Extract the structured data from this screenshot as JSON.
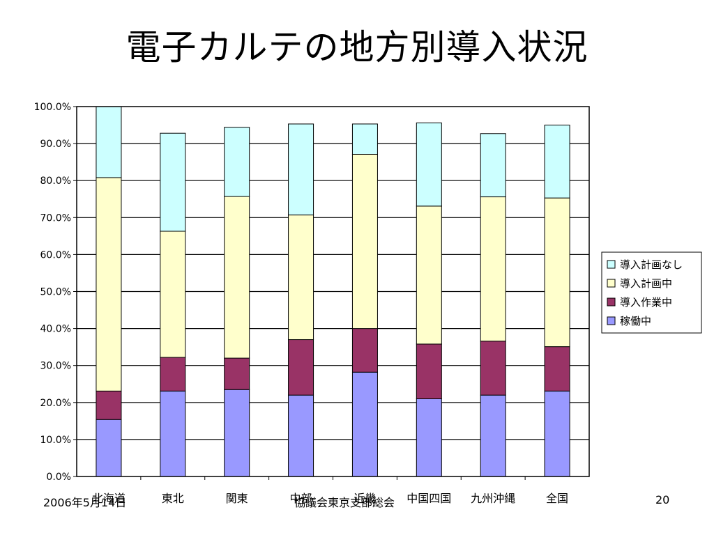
{
  "slide": {
    "title": "電子カルテの地方別導入状況",
    "footer_date": "2006年5月14日",
    "footer_org": "協議会東京支部総会",
    "page_number": "20"
  },
  "chart_data": {
    "type": "bar",
    "stacked": true,
    "title": "",
    "xlabel": "",
    "ylabel": "",
    "ylim": [
      0,
      100
    ],
    "y_tick_labels": [
      "0.0%",
      "10.0%",
      "20.0%",
      "30.0%",
      "40.0%",
      "50.0%",
      "60.0%",
      "70.0%",
      "80.0%",
      "90.0%",
      "100.0%"
    ],
    "categories": [
      "北海道",
      "東北",
      "関東",
      "中部",
      "近畿",
      "中国四国",
      "九州沖縄",
      "全国"
    ],
    "series": [
      {
        "name": "稼働中",
        "color": "#9999ff",
        "values": [
          15.4,
          23.1,
          23.5,
          22.0,
          28.2,
          21.0,
          22.0,
          23.1
        ]
      },
      {
        "name": "導入作業中",
        "color": "#993366",
        "values": [
          7.7,
          9.1,
          8.5,
          15.0,
          11.8,
          14.8,
          14.6,
          12.0
        ]
      },
      {
        "name": "導入計画中",
        "color": "#ffffcc",
        "values": [
          57.7,
          34.1,
          43.7,
          33.7,
          47.1,
          37.3,
          39.0,
          40.2
        ]
      },
      {
        "name": "導入計画なし",
        "color": "#ccffff",
        "values": [
          19.2,
          26.5,
          18.7,
          24.6,
          8.2,
          22.5,
          17.1,
          19.7
        ]
      }
    ],
    "legend_position": "right",
    "grid": true
  }
}
